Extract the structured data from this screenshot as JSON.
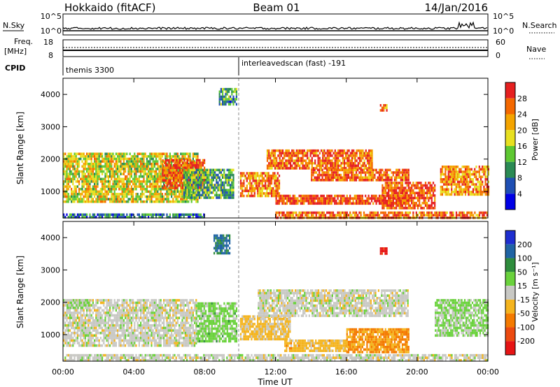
{
  "header": {
    "station": "Hokkaido (fitACF)",
    "beam": "Beam 01",
    "date": "14/Jan/2016"
  },
  "noise_panel": {
    "left_label": "N.Sky",
    "right_label": "N.Search",
    "left_ticks": [
      "10^5",
      "10^0"
    ],
    "right_ticks": [
      "10^5",
      "10^0"
    ]
  },
  "freq_panel": {
    "left_label_line1": "Freq.",
    "left_label_line2": "[MHz]",
    "right_label": "Nave",
    "left_ticks": [
      "18",
      "8"
    ],
    "right_ticks": [
      "60",
      "0"
    ]
  },
  "cpid_panel": {
    "label": "CPID",
    "entries": [
      "themis 3300",
      "interleavedscan (fast) -191"
    ]
  },
  "time_axis": {
    "label": "Time UT",
    "ticks": [
      "00:00",
      "04:00",
      "08:00",
      "12:00",
      "16:00",
      "20:00",
      "00:00"
    ]
  },
  "power_panel": {
    "ylabel": "Slant Range [km]",
    "yticks": [
      "4000",
      "3000",
      "2000",
      "1000"
    ],
    "colorbar_label": "Power [dB]",
    "colorbar_ticks": [
      "28",
      "24",
      "20",
      "16",
      "12",
      "8",
      "4"
    ],
    "colors": [
      "#0000e6",
      "#1f4fb4",
      "#2a8a54",
      "#5ec832",
      "#e8e020",
      "#f4a400",
      "#f46800",
      "#e62020"
    ]
  },
  "velocity_panel": {
    "ylabel": "Slant Range [km]",
    "yticks": [
      "4000",
      "3000",
      "2000",
      "1000"
    ],
    "colorbar_label": "Velocity [m s⁻¹]",
    "colorbar_ticks": [
      "200",
      "100",
      "50",
      "15",
      "-15",
      "-50",
      "-100",
      "-200"
    ],
    "colors": [
      "#1e2ed0",
      "#2064a4",
      "#2e8c3c",
      "#6ad23c",
      "#c8c8c4",
      "#f4b41e",
      "#f47a00",
      "#ec4a10",
      "#e61414"
    ]
  },
  "chart_data": [
    {
      "type": "heatmap",
      "title": "Power [dB]",
      "xlabel": "Time UT",
      "ylabel": "Slant Range [km]",
      "xlim": [
        0,
        24
      ],
      "ylim": [
        180,
        4500
      ],
      "clim": [
        0,
        30
      ],
      "regions": [
        {
          "t0": 0.0,
          "t1": 7.6,
          "r0": 700,
          "r1": 2200,
          "db": 17
        },
        {
          "t0": 5.6,
          "t1": 8.0,
          "r0": 1100,
          "r1": 2000,
          "db": 26
        },
        {
          "t0": 6.8,
          "t1": 9.6,
          "r0": 800,
          "r1": 1700,
          "db": 11
        },
        {
          "t0": 8.8,
          "t1": 9.8,
          "r0": 3700,
          "r1": 4200,
          "db": 10
        },
        {
          "t0": 10.0,
          "t1": 12.2,
          "r0": 900,
          "r1": 1600,
          "db": 23
        },
        {
          "t0": 11.5,
          "t1": 17.5,
          "r0": 1700,
          "r1": 2300,
          "db": 25
        },
        {
          "t0": 14.0,
          "t1": 19.5,
          "r0": 1350,
          "r1": 1700,
          "db": 25
        },
        {
          "t0": 12.0,
          "t1": 19.5,
          "r0": 650,
          "r1": 900,
          "db": 27
        },
        {
          "t0": 18.0,
          "t1": 21.0,
          "r0": 500,
          "r1": 1300,
          "db": 26
        },
        {
          "t0": 21.3,
          "t1": 24.0,
          "r0": 900,
          "r1": 1800,
          "db": 22
        },
        {
          "t0": 12.0,
          "t1": 24.0,
          "r0": 220,
          "r1": 380,
          "db": 24
        },
        {
          "t0": 0.0,
          "t1": 8.0,
          "r0": 220,
          "r1": 320,
          "db": 8
        },
        {
          "t0": 17.9,
          "t1": 18.3,
          "r0": 3500,
          "r1": 3700,
          "db": 22
        }
      ]
    },
    {
      "type": "heatmap",
      "title": "Velocity [m s⁻¹]",
      "xlabel": "Time UT",
      "ylabel": "Slant Range [km]",
      "xlim": [
        0,
        24
      ],
      "ylim": [
        180,
        4500
      ],
      "clim": [
        -200,
        200
      ],
      "regions": [
        {
          "t0": 0.0,
          "t1": 7.5,
          "r0": 700,
          "r1": 2100,
          "v": 0
        },
        {
          "t0": 0.2,
          "t1": 1.5,
          "r0": 1800,
          "r1": 2100,
          "v": 35
        },
        {
          "t0": 7.5,
          "t1": 9.8,
          "r0": 800,
          "r1": 2000,
          "v": 40
        },
        {
          "t0": 8.5,
          "t1": 9.4,
          "r0": 3500,
          "r1": 4100,
          "v": 120
        },
        {
          "t0": 10.0,
          "t1": 12.8,
          "r0": 900,
          "r1": 1600,
          "v": -35
        },
        {
          "t0": 11.0,
          "t1": 19.5,
          "r0": 1600,
          "r1": 2400,
          "v": 0
        },
        {
          "t0": 12.5,
          "t1": 16.0,
          "r0": 500,
          "r1": 850,
          "v": -40
        },
        {
          "t0": 16.0,
          "t1": 19.5,
          "r0": 500,
          "r1": 1200,
          "v": -70
        },
        {
          "t0": 21.0,
          "t1": 24.0,
          "r0": 1000,
          "r1": 2100,
          "v": 30
        },
        {
          "t0": 0.0,
          "t1": 24.0,
          "r0": 220,
          "r1": 400,
          "v": 0
        },
        {
          "t0": 17.9,
          "t1": 18.3,
          "r0": 3500,
          "r1": 3700,
          "v": -180
        }
      ]
    }
  ]
}
